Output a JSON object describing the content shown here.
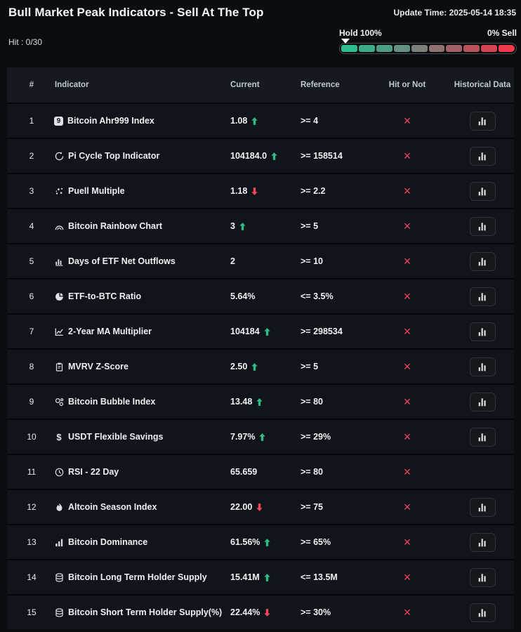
{
  "header": {
    "title": "Bull Market Peak Indicators - Sell At The Top",
    "update_time": "Update Time: 2025-05-14 18:35",
    "hit_label": "Hit : 0/30",
    "gauge": {
      "left_label": "Hold 100%",
      "right_label": "0% Sell",
      "marker_pct": 0,
      "segments": [
        "#2ebd8f",
        "#3aab8b",
        "#4f9c86",
        "#639080",
        "#7a817b",
        "#8d7271",
        "#a06267",
        "#b9525b",
        "#d34450",
        "#f23a4c"
      ]
    }
  },
  "colors": {
    "up": "#2ebd85",
    "down": "#f6465d",
    "miss": "#f6465d"
  },
  "table": {
    "columns": [
      "#",
      "Indicator",
      "Current",
      "Reference",
      "Hit or Not",
      "Historical Data"
    ],
    "rows": [
      {
        "num": "1",
        "icon": "badge-9",
        "indicator": "Bitcoin Ahr999 Index",
        "current": "1.08",
        "trend": "up",
        "reference": ">= 4",
        "hit": "miss",
        "has_history": true
      },
      {
        "num": "2",
        "icon": "cycle",
        "indicator": "Pi Cycle Top Indicator",
        "current": "104184.0",
        "trend": "up",
        "reference": ">= 158514",
        "hit": "miss",
        "has_history": true
      },
      {
        "num": "3",
        "icon": "mining-dots",
        "indicator": "Puell Multiple",
        "current": "1.18",
        "trend": "down",
        "reference": ">= 2.2",
        "hit": "miss",
        "has_history": true
      },
      {
        "num": "4",
        "icon": "rainbow",
        "indicator": "Bitcoin Rainbow Chart",
        "current": "3",
        "trend": "up",
        "reference": ">= 5",
        "hit": "miss",
        "has_history": true
      },
      {
        "num": "5",
        "icon": "bar-chart",
        "indicator": "Days of ETF Net Outflows",
        "current": "2",
        "trend": "",
        "reference": ">= 10",
        "hit": "miss",
        "has_history": true
      },
      {
        "num": "6",
        "icon": "pie-chart",
        "indicator": "ETF-to-BTC Ratio",
        "current": "5.64%",
        "trend": "",
        "reference": "<= 3.5%",
        "hit": "miss",
        "has_history": true
      },
      {
        "num": "7",
        "icon": "line-chart",
        "indicator": "2-Year MA Multiplier",
        "current": "104184",
        "trend": "up",
        "reference": ">= 298534",
        "hit": "miss",
        "has_history": true
      },
      {
        "num": "8",
        "icon": "clipboard",
        "indicator": "MVRV Z-Score",
        "current": "2.50",
        "trend": "up",
        "reference": ">= 5",
        "hit": "miss",
        "has_history": true
      },
      {
        "num": "9",
        "icon": "bubbles",
        "indicator": "Bitcoin Bubble Index",
        "current": "13.48",
        "trend": "up",
        "reference": ">= 80",
        "hit": "miss",
        "has_history": true
      },
      {
        "num": "10",
        "icon": "dollar",
        "indicator": "USDT Flexible Savings",
        "current": "7.97%",
        "trend": "up",
        "reference": ">= 29%",
        "hit": "miss",
        "has_history": true
      },
      {
        "num": "11",
        "icon": "clock",
        "indicator": "RSI - 22 Day",
        "current": "65.659",
        "trend": "",
        "reference": ">= 80",
        "hit": "miss",
        "has_history": false
      },
      {
        "num": "12",
        "icon": "flame",
        "indicator": "Altcoin Season Index",
        "current": "22.00",
        "trend": "down",
        "reference": ">= 75",
        "hit": "miss",
        "has_history": true
      },
      {
        "num": "13",
        "icon": "signal-bars",
        "indicator": "Bitcoin Dominance",
        "current": "61.56%",
        "trend": "up",
        "reference": ">= 65%",
        "hit": "miss",
        "has_history": true
      },
      {
        "num": "14",
        "icon": "database",
        "indicator": "Bitcoin Long Term Holder Supply",
        "current": "15.41M",
        "trend": "up",
        "reference": "<= 13.5M",
        "hit": "miss",
        "has_history": true
      },
      {
        "num": "15",
        "icon": "database",
        "indicator": "Bitcoin Short Term Holder Supply(%)",
        "current": "22.44%",
        "trend": "down",
        "reference": ">= 30%",
        "hit": "miss",
        "has_history": true
      }
    ]
  }
}
